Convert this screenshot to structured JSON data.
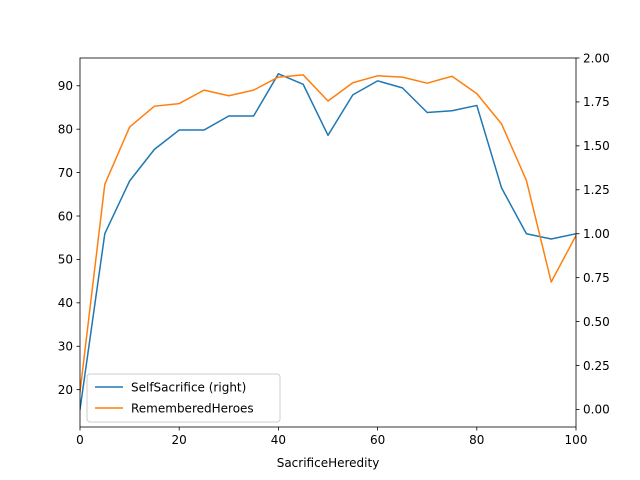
{
  "chart_data": {
    "type": "line",
    "title": "",
    "xlabel": "SacrificeHeredity",
    "ylabel": "",
    "ylabel_right": "",
    "xlim": [
      0,
      100
    ],
    "ylim_left": [
      11.4,
      96.4
    ],
    "ylim_right": [
      -0.1,
      2.0
    ],
    "x_ticks": [
      0,
      20,
      40,
      60,
      80,
      100
    ],
    "y_left_ticks": [
      20,
      30,
      40,
      50,
      60,
      70,
      80,
      90
    ],
    "y_right_ticks": [
      0.0,
      0.25,
      0.5,
      0.75,
      1.0,
      1.25,
      1.5,
      1.75,
      2.0
    ],
    "y_right_tick_labels": [
      "0.00",
      "0.25",
      "0.50",
      "0.75",
      "1.00",
      "1.25",
      "1.50",
      "1.75",
      "2.00"
    ],
    "grid": false,
    "legend_position": "lower-left",
    "x": [
      0,
      5,
      10,
      15,
      20,
      25,
      30,
      35,
      40,
      45,
      50,
      55,
      60,
      65,
      70,
      75,
      80,
      85,
      90,
      95,
      100
    ],
    "series": [
      {
        "name": "SelfSacrifice (right)",
        "axis": "right",
        "color": "#1f77b4",
        "values": [
          0.0,
          1.0,
          1.3,
          1.48,
          1.59,
          1.59,
          1.67,
          1.67,
          1.91,
          1.85,
          1.56,
          1.79,
          1.87,
          1.83,
          1.69,
          1.7,
          1.73,
          1.26,
          1.0,
          0.97,
          1.0
        ]
      },
      {
        "name": "RememberedHeroes",
        "axis": "left",
        "color": "#ff7f0e",
        "values": [
          19.5,
          67.3,
          80.5,
          85.3,
          85.9,
          89.0,
          87.7,
          89.0,
          92.0,
          92.5,
          86.5,
          90.7,
          92.3,
          92.0,
          90.6,
          92.2,
          88.2,
          81.2,
          68.2,
          44.8,
          55.5
        ]
      }
    ]
  }
}
